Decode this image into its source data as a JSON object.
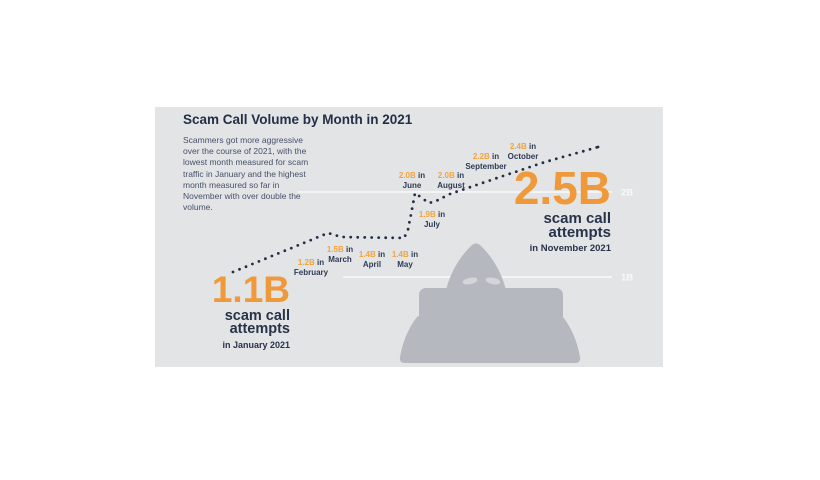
{
  "header": {
    "title": "Scam Call Volume by Month in 2021",
    "description": "Scammers got more aggressive over the course of 2021, with the lowest month measured for scam traffic in January and the highest month measured so far in November with over double the volume."
  },
  "chart_data": {
    "type": "line",
    "line_style": "dotted",
    "title": "Scam Call Volume by Month in 2021",
    "categories": [
      "January",
      "February",
      "March",
      "April",
      "May",
      "June",
      "July",
      "August",
      "September",
      "October",
      "November"
    ],
    "values": [
      1.1,
      1.2,
      1.5,
      1.4,
      1.4,
      2.0,
      1.9,
      2.0,
      2.2,
      2.4,
      2.5
    ],
    "unit": "B",
    "value_labels": [
      "1.1B",
      "1.2B",
      "1.5B",
      "1.4B",
      "1.4B",
      "2.0B",
      "1.9B",
      "2.0B",
      "2.2B",
      "2.4B",
      "2.5B"
    ],
    "ylim": [
      1.0,
      2.6
    ],
    "grid": "horizontal-white-lines",
    "legend": "none",
    "gridlines": [
      {
        "value": 2,
        "label": "2B"
      },
      {
        "value": 1,
        "label": "1B"
      }
    ]
  },
  "point_labels": [
    {
      "value": "1.2B",
      "joiner": "in",
      "month": "February"
    },
    {
      "value": "1.5B",
      "joiner": "in",
      "month": "March"
    },
    {
      "value": "1.4B",
      "joiner": "in",
      "month": "April"
    },
    {
      "value": "1.4B",
      "joiner": "in",
      "month": "May"
    },
    {
      "value": "2.0B",
      "joiner": "in",
      "month": "June"
    },
    {
      "value": "1.9B",
      "joiner": "in",
      "month": "July"
    },
    {
      "value": "2.0B",
      "joiner": "in",
      "month": "August"
    },
    {
      "value": "2.2B",
      "joiner": "in",
      "month": "September"
    },
    {
      "value": "2.4B",
      "joiner": "in",
      "month": "October"
    }
  ],
  "callouts": {
    "january": {
      "value": "1.1B",
      "line1": "scam call",
      "line2": "attempts",
      "caption": "in January 2021"
    },
    "november": {
      "value": "2.5B",
      "line1": "scam call",
      "line2": "attempts",
      "caption": "in November 2021"
    }
  },
  "figure": {
    "icon": "hooded-scammer-with-laptop-icon"
  },
  "colors": {
    "panel_bg": "#e3e4e6",
    "navy_text": "#242f46",
    "body_text": "#46516a",
    "accent_orange": "#f0993b",
    "label_gold": "#f2a43e",
    "dot_navy": "#232e46",
    "figure_gray": "#b5b8be",
    "figure_eyes": "#d3d5d9",
    "gridline_white": "#ffffff"
  }
}
